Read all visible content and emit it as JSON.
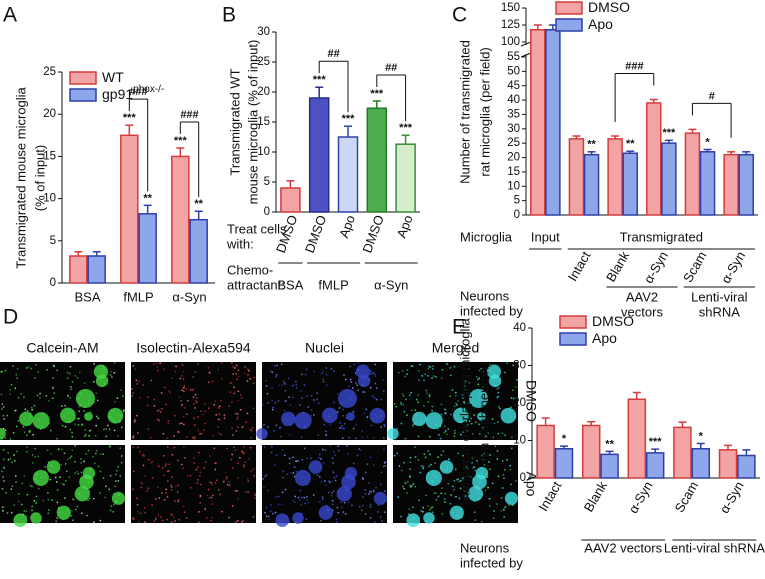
{
  "chart_data": [
    {
      "type": "bar",
      "panel": "A",
      "ylabel": [
        "Transmigrated mouse microglia",
        "(% of input)"
      ],
      "categories": [
        "BSA",
        "fMLP",
        "α-Syn"
      ],
      "ylim": [
        0,
        25
      ],
      "yticks": [
        0,
        5,
        10,
        15,
        20,
        25
      ],
      "series": [
        {
          "name": "WT",
          "color": "#f2a3a3",
          "edge": "#d43c3c",
          "values": [
            3.2,
            17.5,
            15
          ],
          "errors": [
            0.5,
            1.2,
            1
          ],
          "significance": [
            null,
            "***",
            "***"
          ]
        },
        {
          "name": "gp91",
          "name_superscript": "phox-/-",
          "color": "#8ea6ea",
          "edge": "#2f3fa8",
          "values": [
            3.2,
            8.2,
            7.5
          ],
          "errors": [
            0.5,
            1,
            1
          ],
          "significance": [
            null,
            "**",
            "**"
          ]
        }
      ],
      "brackets": [
        {
          "label": "###",
          "between": [
            [
              0,
              1
            ],
            [
              1,
              1
            ]
          ]
        },
        {
          "label": "###",
          "between": [
            [
              0,
              2
            ],
            [
              1,
              2
            ]
          ]
        }
      ]
    },
    {
      "type": "bar",
      "panel": "B",
      "ylabel": [
        "Transmigrated WT",
        "mouse microglia (% of input)"
      ],
      "category_label": [
        "Treat cells",
        "with:"
      ],
      "categories": [
        "DMSO",
        "DMSO",
        "Apo",
        "DMSO",
        "Apo"
      ],
      "ylim": [
        0,
        30
      ],
      "yticks": [
        0,
        5,
        10,
        15,
        20,
        25,
        30
      ],
      "series": [
        {
          "colors": [
            "#f2a3a3",
            "#4c52c4",
            "#cdd8f6",
            "#4cae4c",
            "#d6eccb"
          ],
          "edges": [
            "#d43c3c",
            "#262c8e",
            "#3344aa",
            "#277a27",
            "#3a8a3a"
          ],
          "values": [
            4,
            19,
            12.5,
            17.3,
            11.3
          ],
          "errors": [
            1.2,
            1.8,
            1.8,
            1.2,
            1.5
          ],
          "significance": [
            null,
            "***",
            "***",
            "***",
            "***"
          ]
        }
      ],
      "brackets": [
        {
          "label": "##",
          "between": [
            [
              0,
              1
            ],
            [
              0,
              2
            ]
          ]
        },
        {
          "label": "##",
          "between": [
            [
              0,
              3
            ],
            [
              0,
              4
            ]
          ]
        }
      ],
      "rows": [
        {
          "label": [
            "Chemo-",
            "attractant:"
          ],
          "groups": [
            {
              "label": "BSA",
              "from": 0,
              "to": 0
            },
            {
              "label": "fMLP",
              "from": 1,
              "to": 2
            },
            {
              "label": "α-Syn",
              "from": 3,
              "to": 4
            }
          ]
        }
      ]
    },
    {
      "type": "bar",
      "panel": "C",
      "ylabel": [
        "Number of transmigrated",
        "rat microglia (per field)"
      ],
      "categories": [
        null,
        "Intact",
        "Blank",
        "α-Syn",
        "Scam",
        "α-Syn"
      ],
      "ylim": [
        0,
        150
      ],
      "ybreak": [
        55,
        100
      ],
      "yticks": [
        0,
        5,
        10,
        15,
        20,
        25,
        30,
        35,
        40,
        45,
        50,
        55,
        100,
        125,
        150
      ],
      "series": [
        {
          "name": "DMSO",
          "color": "#f2a3a3",
          "edge": "#d43c3c",
          "values": [
            118,
            26.5,
            26.5,
            39,
            28.5,
            21
          ],
          "errors": [
            7,
            1,
            1,
            1.2,
            1.3,
            1
          ],
          "significance": [
            null,
            null,
            null,
            null,
            null,
            null
          ]
        },
        {
          "name": "Apo",
          "color": "#8ea6ea",
          "edge": "#2f3fa8",
          "values": [
            118,
            21,
            21.5,
            25,
            22,
            21
          ],
          "errors": [
            7,
            1,
            0.7,
            1,
            0.8,
            1
          ],
          "significance": [
            null,
            "**",
            "**",
            "***",
            "*",
            null
          ]
        }
      ],
      "brackets": [
        {
          "label": "###",
          "between": [
            [
              0,
              2
            ],
            [
              0,
              3
            ]
          ]
        },
        {
          "label": "#",
          "between": [
            [
              0,
              4
            ],
            [
              0,
              5
            ]
          ]
        }
      ],
      "rows": [
        {
          "label": [
            "Microglia"
          ],
          "groups": [
            {
              "label": "Input",
              "from": 0,
              "to": 0
            },
            {
              "label": "Transmigrated",
              "from": 1,
              "to": 5
            }
          ]
        },
        {
          "label": [
            "Neurons",
            "infected by"
          ],
          "groups": [
            {
              "label": [
                "AAV2",
                "vectors"
              ],
              "from": 2,
              "to": 3
            },
            {
              "label": [
                "Lenti-viral",
                "shRNA"
              ],
              "from": 4,
              "to": 5
            }
          ]
        }
      ]
    },
    {
      "type": "micrograph",
      "panel": "D",
      "columns": [
        "Calcein-AM",
        "Isolectin-Alexa594",
        "Nuclei",
        "Merged"
      ],
      "rows": [
        "DMSO",
        "Apo"
      ]
    },
    {
      "type": "bar",
      "panel": "E",
      "ylabel": [
        "Number of overlapping microglia",
        "(on each neuron)"
      ],
      "categories": [
        "Intact",
        "Blank",
        "α-Syn",
        "Scam",
        "α-Syn"
      ],
      "ylim": [
        0,
        40
      ],
      "yticks": [
        0,
        10,
        20,
        30,
        40
      ],
      "series": [
        {
          "name": "DMSO",
          "color": "#f2a3a3",
          "edge": "#d43c3c",
          "values": [
            14,
            14,
            21,
            13.5,
            7.5
          ],
          "errors": [
            2,
            1,
            1.8,
            1.4,
            1.2
          ],
          "significance": [
            null,
            null,
            null,
            null,
            null
          ]
        },
        {
          "name": "Apo",
          "color": "#8ea6ea",
          "edge": "#2f3fa8",
          "values": [
            7.8,
            6.3,
            6.7,
            7.8,
            6
          ],
          "errors": [
            0.7,
            0.8,
            1,
            1.4,
            1.5
          ],
          "significance": [
            "*",
            "**",
            "***",
            "*",
            null
          ]
        }
      ],
      "rows": [
        {
          "label": [
            "Neurons",
            "infected by"
          ],
          "groups": [
            {
              "label": "AAV2 vectors",
              "from": 1,
              "to": 2
            },
            {
              "label": "Lenti-viral shRNA",
              "from": 3,
              "to": 4
            }
          ]
        }
      ]
    }
  ]
}
